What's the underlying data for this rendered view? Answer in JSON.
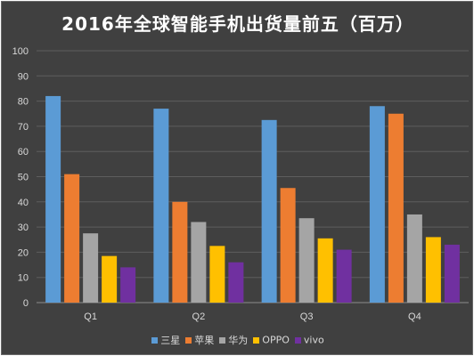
{
  "chart_data": {
    "type": "bar",
    "title": "2016年全球智能手机出货量前五（百万）",
    "categories": [
      "Q1",
      "Q2",
      "Q3",
      "Q4"
    ],
    "ylim": [
      0,
      100
    ],
    "yticks": [
      0,
      10,
      20,
      30,
      40,
      50,
      60,
      70,
      80,
      90,
      100
    ],
    "grid": true,
    "legend_position": "bottom",
    "series": [
      {
        "name": "三星",
        "color": "#5b9bd5",
        "values": [
          82,
          77,
          72.5,
          78
        ]
      },
      {
        "name": "苹果",
        "color": "#ed7d31",
        "values": [
          51,
          40,
          45.5,
          75
        ]
      },
      {
        "name": "华为",
        "color": "#a5a5a5",
        "values": [
          27.5,
          32,
          33.5,
          35
        ]
      },
      {
        "name": "OPPO",
        "color": "#ffc000",
        "values": [
          18.5,
          22.5,
          25.5,
          26
        ]
      },
      {
        "name": "vivo",
        "color": "#7030a0",
        "values": [
          14,
          16,
          21,
          23
        ]
      }
    ]
  }
}
